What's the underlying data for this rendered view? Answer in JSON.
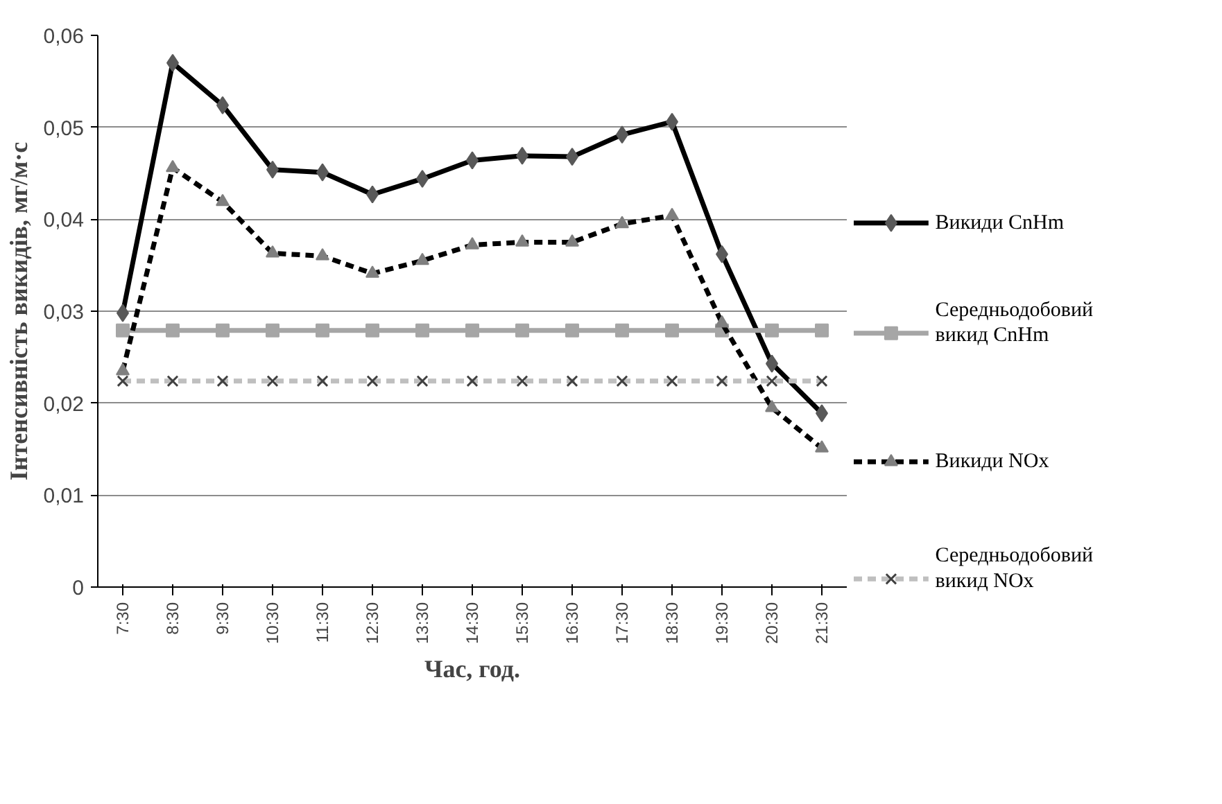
{
  "chart_data": {
    "type": "line",
    "xlabel": "Час, год.",
    "ylabel": "Інтенсивність викидів, мг/м·с",
    "categories": [
      "7:30",
      "8:30",
      "9:30",
      "10:30",
      "11:30",
      "12:30",
      "13:30",
      "14:30",
      "15:30",
      "16:30",
      "17:30",
      "18:30",
      "19:30",
      "20:30",
      "21:30"
    ],
    "ylim": [
      0,
      0.06
    ],
    "yticks": [
      {
        "value": 0,
        "label": "0"
      },
      {
        "value": 0.01,
        "label": "0,01"
      },
      {
        "value": 0.02,
        "label": "0,02"
      },
      {
        "value": 0.03,
        "label": "0,03"
      },
      {
        "value": 0.04,
        "label": "0,04"
      },
      {
        "value": 0.05,
        "label": "0,05"
      },
      {
        "value": 0.06,
        "label": "0,06"
      }
    ],
    "grid": "y",
    "legend": "right",
    "series": [
      {
        "name": "Викиди CnHm",
        "color": "#000000",
        "marker": "diamond",
        "line_style": "solid",
        "values": [
          0.0298,
          0.057,
          0.0524,
          0.0454,
          0.0451,
          0.0427,
          0.0444,
          0.0464,
          0.0469,
          0.0468,
          0.0492,
          0.0506,
          0.0362,
          0.0243,
          0.0189
        ]
      },
      {
        "name": "Середньодобовий викид CnHm",
        "color": "#a6a6a6",
        "marker": "square",
        "line_style": "solid",
        "values": [
          0.0279,
          0.0279,
          0.0279,
          0.0279,
          0.0279,
          0.0279,
          0.0279,
          0.0279,
          0.0279,
          0.0279,
          0.0279,
          0.0279,
          0.0279,
          0.0279,
          0.0279
        ]
      },
      {
        "name": "Викиди NOx",
        "color": "#000000",
        "marker": "triangle",
        "line_style": "dashed",
        "values": [
          0.0235,
          0.0456,
          0.0419,
          0.0363,
          0.036,
          0.0341,
          0.0355,
          0.0372,
          0.0375,
          0.0375,
          0.0395,
          0.0404,
          0.0287,
          0.0195,
          0.0151
        ]
      },
      {
        "name": "Середньодобовий викид NOx",
        "color": "#bfbfbf",
        "marker": "cross",
        "line_style": "dashed",
        "values": [
          0.0224,
          0.0224,
          0.0224,
          0.0224,
          0.0224,
          0.0224,
          0.0224,
          0.0224,
          0.0224,
          0.0224,
          0.0224,
          0.0224,
          0.0224,
          0.0224,
          0.0224
        ]
      }
    ]
  }
}
